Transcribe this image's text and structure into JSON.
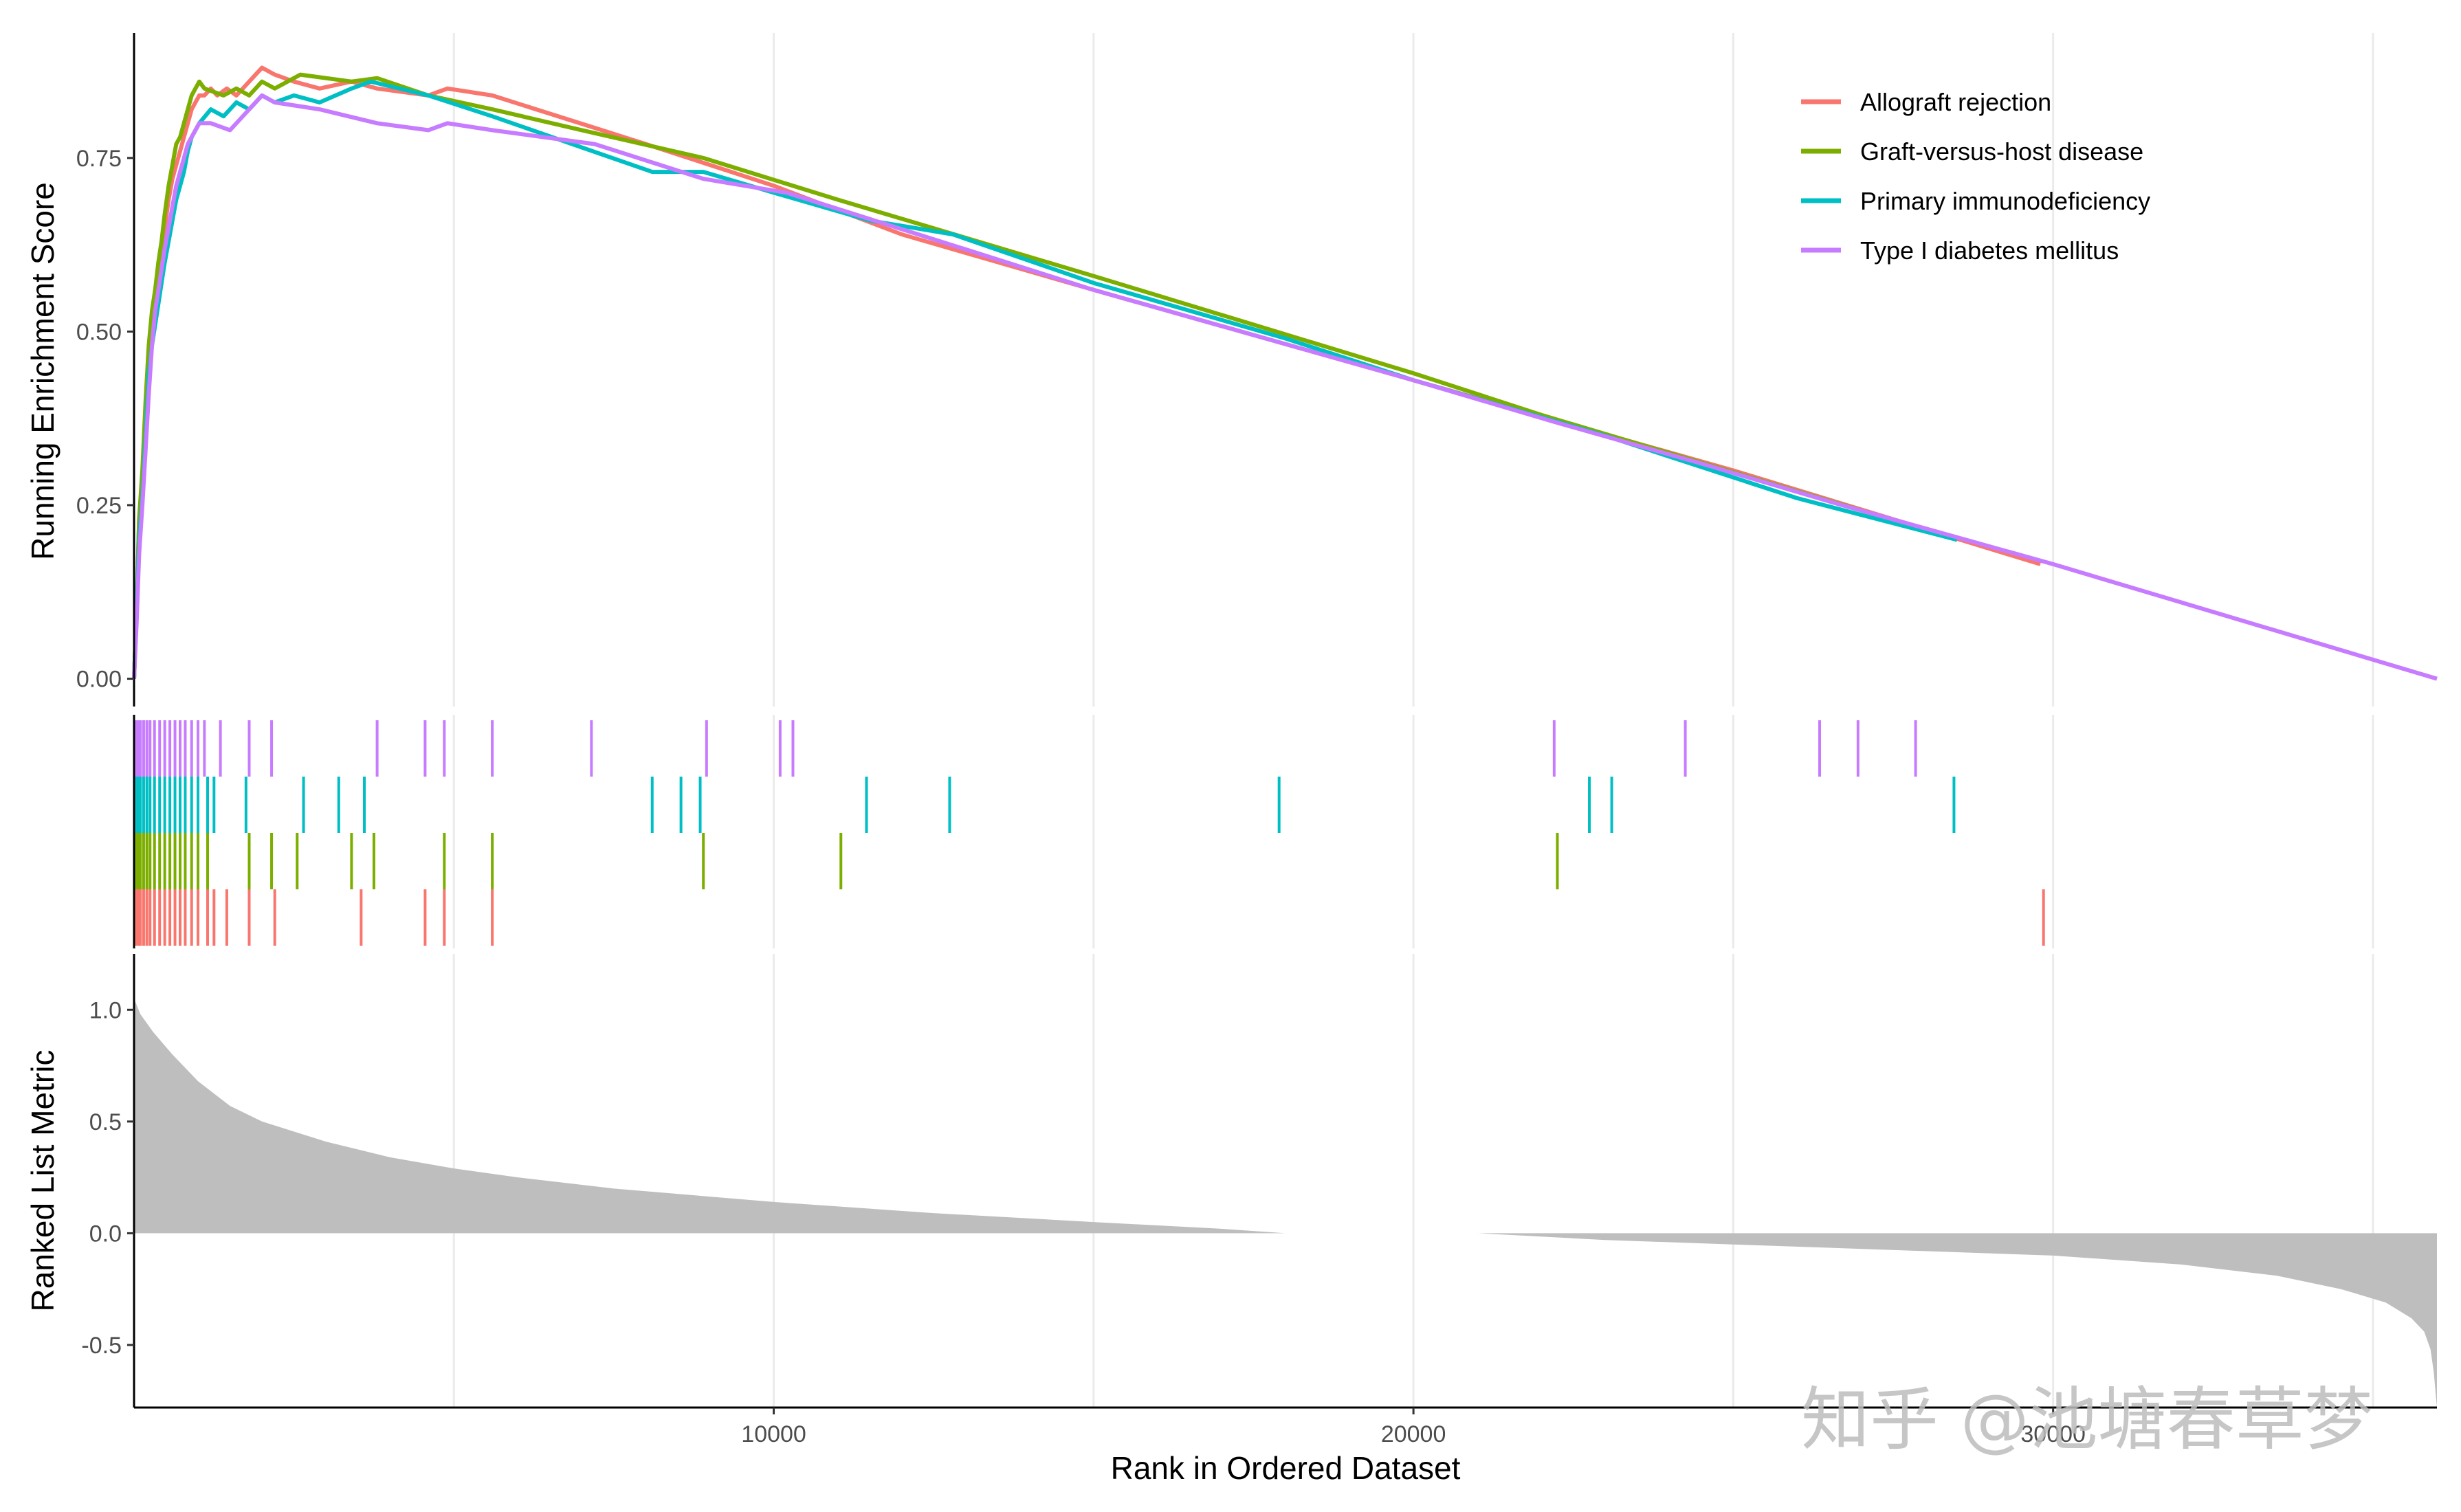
{
  "chart_data": [
    {
      "type": "line",
      "panel": "running-enrichment-score",
      "ylabel": "Running Enrichment Score",
      "xlabel": "",
      "xlim": [
        0,
        36000
      ],
      "ylim": [
        -0.04,
        0.93
      ],
      "yticks": [
        0.0,
        0.25,
        0.5,
        0.75
      ],
      "ytick_labels": [
        "0.00",
        "0.25",
        "0.50",
        "0.75"
      ],
      "xticks_grid": [
        5000,
        10000,
        15000,
        20000,
        25000,
        30000,
        35000
      ],
      "grid": true,
      "legend_position": "top-right",
      "series": [
        {
          "name": "Allograft rejection",
          "color": "#F8766D",
          "x": [
            0,
            40,
            80,
            130,
            180,
            230,
            280,
            330,
            380,
            430,
            480,
            540,
            600,
            660,
            720,
            780,
            840,
            900,
            960,
            1020,
            1100,
            1200,
            1300,
            1450,
            1600,
            1800,
            2000,
            2200,
            2500,
            2900,
            3400,
            3800,
            4600,
            4900,
            5600,
            8000,
            10000,
            12000,
            15000,
            20000,
            25000,
            29800
          ],
          "y": [
            0.0,
            0.1,
            0.23,
            0.27,
            0.36,
            0.46,
            0.52,
            0.55,
            0.58,
            0.61,
            0.65,
            0.69,
            0.72,
            0.74,
            0.76,
            0.78,
            0.8,
            0.82,
            0.83,
            0.84,
            0.84,
            0.85,
            0.84,
            0.85,
            0.84,
            0.86,
            0.88,
            0.87,
            0.86,
            0.85,
            0.86,
            0.85,
            0.84,
            0.85,
            0.84,
            0.77,
            0.71,
            0.64,
            0.56,
            0.43,
            0.3,
            0.165
          ]
        },
        {
          "name": "Graft-versus-host disease",
          "color": "#7CAE00",
          "x": [
            0,
            40,
            80,
            130,
            180,
            230,
            280,
            330,
            380,
            430,
            480,
            540,
            600,
            660,
            720,
            780,
            840,
            900,
            960,
            1020,
            1100,
            1400,
            1600,
            1800,
            2000,
            2200,
            2600,
            3400,
            3800,
            4600,
            5600,
            7000,
            8900,
            11000,
            15000,
            20000,
            22000,
            26000,
            28000
          ],
          "y": [
            0.0,
            0.1,
            0.23,
            0.3,
            0.4,
            0.48,
            0.53,
            0.56,
            0.6,
            0.63,
            0.67,
            0.71,
            0.74,
            0.77,
            0.78,
            0.8,
            0.82,
            0.84,
            0.85,
            0.86,
            0.85,
            0.84,
            0.85,
            0.84,
            0.86,
            0.85,
            0.87,
            0.86,
            0.865,
            0.84,
            0.82,
            0.79,
            0.75,
            0.69,
            0.58,
            0.44,
            0.38,
            0.27,
            0.215
          ]
        },
        {
          "name": "Primary immunodeficiency",
          "color": "#00BFC4",
          "x": [
            0,
            40,
            80,
            130,
            180,
            230,
            280,
            330,
            380,
            430,
            480,
            540,
            600,
            660,
            720,
            780,
            840,
            900,
            960,
            1020,
            1200,
            1400,
            1600,
            1800,
            2000,
            2200,
            2500,
            2900,
            3400,
            3700,
            4600,
            5600,
            8100,
            8900,
            10000,
            11500,
            12800,
            15000,
            18000,
            20000,
            23000,
            26000,
            28500
          ],
          "y": [
            0.0,
            0.1,
            0.2,
            0.26,
            0.35,
            0.44,
            0.48,
            0.51,
            0.54,
            0.57,
            0.6,
            0.63,
            0.66,
            0.69,
            0.71,
            0.73,
            0.76,
            0.78,
            0.79,
            0.8,
            0.82,
            0.81,
            0.83,
            0.82,
            0.84,
            0.83,
            0.84,
            0.83,
            0.85,
            0.86,
            0.84,
            0.81,
            0.73,
            0.73,
            0.7,
            0.66,
            0.64,
            0.57,
            0.49,
            0.43,
            0.35,
            0.26,
            0.2
          ]
        },
        {
          "name": "Type I diabetes mellitus",
          "color": "#C77CFF",
          "x": [
            0,
            40,
            80,
            130,
            180,
            230,
            280,
            330,
            380,
            430,
            480,
            540,
            600,
            660,
            720,
            780,
            840,
            900,
            960,
            1020,
            1200,
            1500,
            1800,
            2000,
            2200,
            2900,
            3800,
            4600,
            4900,
            5600,
            7200,
            8900,
            10200,
            15000,
            20000,
            22200,
            24500,
            26700,
            30000,
            36000
          ],
          "y": [
            0.0,
            0.08,
            0.18,
            0.25,
            0.33,
            0.41,
            0.48,
            0.53,
            0.56,
            0.59,
            0.62,
            0.65,
            0.68,
            0.71,
            0.73,
            0.75,
            0.77,
            0.78,
            0.79,
            0.8,
            0.8,
            0.79,
            0.82,
            0.84,
            0.83,
            0.82,
            0.8,
            0.79,
            0.8,
            0.79,
            0.77,
            0.72,
            0.7,
            0.56,
            0.43,
            0.37,
            0.31,
            0.25,
            0.165,
            0.0
          ]
        }
      ]
    },
    {
      "type": "scatter",
      "panel": "gene-hit-rug",
      "description_marks": "vertical tick per gene hit, one row per gene set",
      "xlim": [
        0,
        36000
      ],
      "series": [
        {
          "name": "Type I diabetes mellitus",
          "color": "#C77CFF",
          "x": [
            20,
            60,
            100,
            150,
            200,
            250,
            320,
            400,
            480,
            560,
            640,
            720,
            800,
            900,
            1000,
            1100,
            1350,
            1800,
            2150,
            3800,
            4550,
            4850,
            5600,
            7150,
            8950,
            10100,
            10300,
            22200,
            24250,
            26350,
            26950,
            27850
          ]
        },
        {
          "name": "Primary immunodeficiency",
          "color": "#00BFC4",
          "x": [
            20,
            60,
            100,
            150,
            200,
            250,
            320,
            400,
            480,
            560,
            640,
            720,
            800,
            900,
            1000,
            1150,
            1250,
            1750,
            2650,
            3200,
            3600,
            8100,
            8550,
            8850,
            11450,
            12750,
            17900,
            22750,
            23100,
            28450
          ]
        },
        {
          "name": "Graft-versus-host disease",
          "color": "#7CAE00",
          "x": [
            20,
            60,
            100,
            150,
            200,
            250,
            320,
            400,
            480,
            560,
            640,
            720,
            800,
            900,
            1000,
            1150,
            1800,
            2150,
            2550,
            3400,
            3750,
            4850,
            5600,
            8900,
            11050,
            22250
          ]
        },
        {
          "name": "Allograft rejection",
          "color": "#F8766D",
          "x": [
            20,
            60,
            100,
            150,
            200,
            250,
            320,
            400,
            480,
            560,
            640,
            720,
            800,
            900,
            1000,
            1150,
            1250,
            1450,
            1800,
            2200,
            3550,
            4550,
            4850,
            5600,
            29850
          ]
        }
      ]
    },
    {
      "type": "area",
      "panel": "ranked-list-metric",
      "ylabel": "Ranked List Metric",
      "xlabel": "Rank in Ordered Dataset",
      "xlim": [
        0,
        36000
      ],
      "ylim": [
        -0.78,
        1.25
      ],
      "yticks": [
        -0.5,
        0.0,
        0.5,
        1.0
      ],
      "ytick_labels": [
        "-0.5",
        "0.0",
        "0.5",
        "1.0"
      ],
      "xticks": [
        10000,
        20000,
        30000
      ],
      "xtick_labels": [
        "10000",
        "20000",
        "30000"
      ],
      "xticks_grid": [
        5000,
        10000,
        15000,
        20000,
        25000,
        30000,
        35000
      ],
      "grid": true,
      "fill_color": "#BEBEBE",
      "x": [
        0,
        100,
        300,
        600,
        1000,
        1500,
        2000,
        3000,
        4000,
        5000,
        6000,
        7500,
        10000,
        12500,
        15000,
        17000,
        18000,
        18010,
        21000,
        21010,
        23000,
        25000,
        28000,
        30000,
        32000,
        33500,
        34500,
        35200,
        35600,
        35800,
        35900,
        35950,
        36000
      ],
      "y": [
        1.05,
        0.98,
        0.9,
        0.8,
        0.68,
        0.57,
        0.5,
        0.41,
        0.34,
        0.29,
        0.25,
        0.2,
        0.14,
        0.09,
        0.05,
        0.02,
        0.0,
        0.0,
        0.0,
        0.0,
        -0.03,
        -0.05,
        -0.08,
        -0.1,
        -0.14,
        -0.19,
        -0.25,
        -0.31,
        -0.38,
        -0.44,
        -0.52,
        -0.62,
        -0.78
      ]
    }
  ],
  "watermark": "知乎 @池塘春草梦"
}
